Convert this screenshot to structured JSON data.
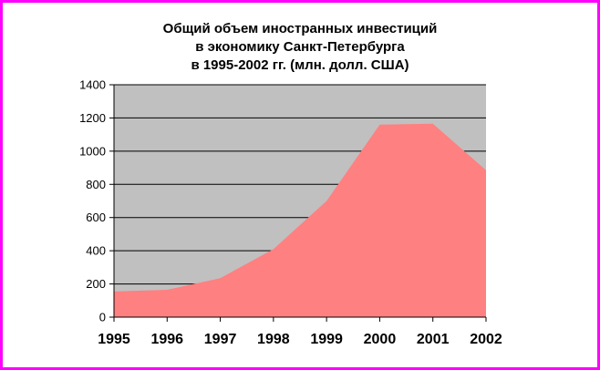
{
  "chart_data": {
    "type": "area",
    "title_lines": [
      "Общий объем иностранных инвестиций",
      "в экономику Санкт-Петербурга",
      "в 1995-2002 гг. (млн. долл. США)"
    ],
    "categories": [
      "1995",
      "1996",
      "1997",
      "1998",
      "1999",
      "2000",
      "2001",
      "2002"
    ],
    "values": [
      155,
      165,
      235,
      410,
      700,
      1160,
      1165,
      885
    ],
    "ylim": [
      0,
      1400
    ],
    "yticks": [
      0,
      200,
      400,
      600,
      800,
      1000,
      1200,
      1400
    ],
    "xlabel": "",
    "ylabel": "",
    "grid": true,
    "legend": "none"
  },
  "colors": {
    "frame": "#ff00ff",
    "plot_background": "#c0c0c0",
    "area_fill": "#ff8080",
    "gridline": "#000000"
  }
}
